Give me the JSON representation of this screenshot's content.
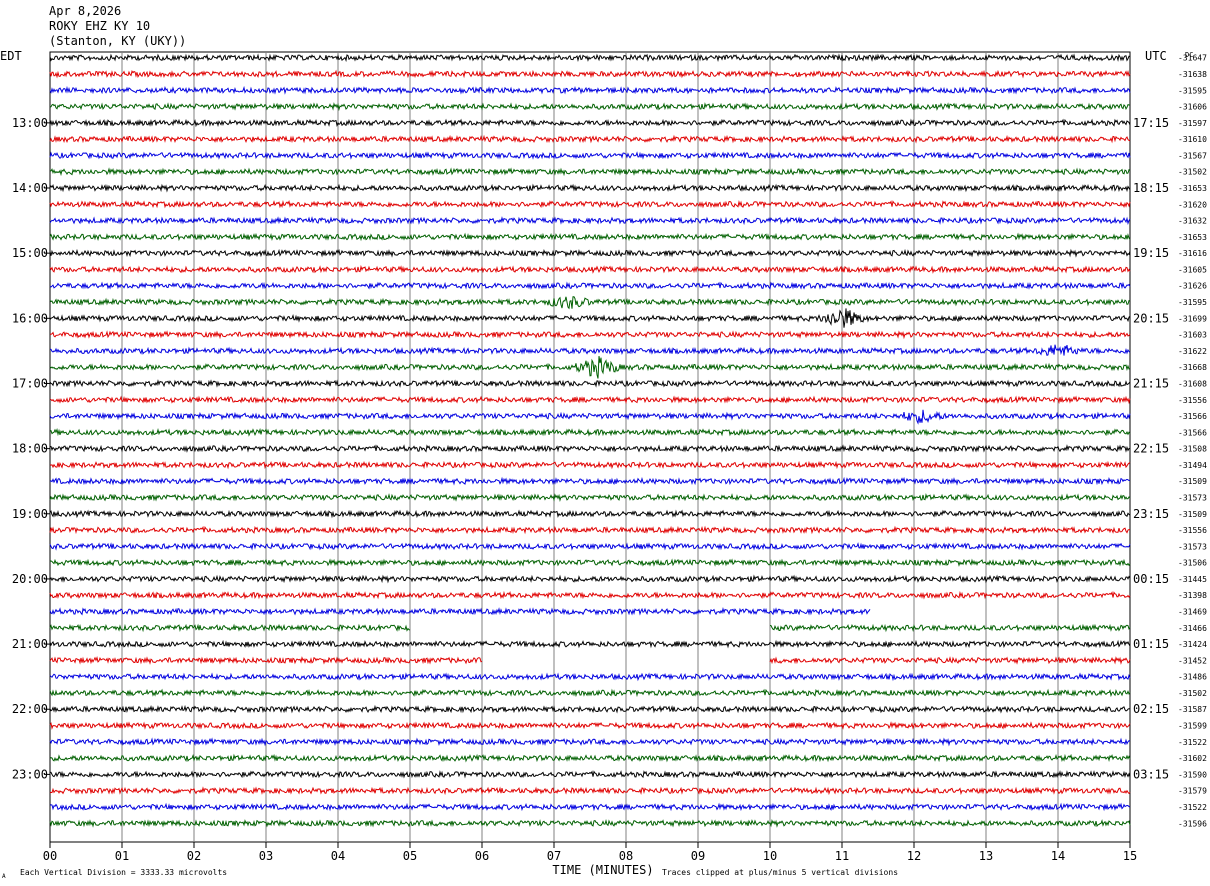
{
  "header": {
    "date": "Apr 8,2026",
    "station": "ROKY EHZ KY 10",
    "location": "(Stanton, KY (UKY))"
  },
  "axis": {
    "left_zone": "EDT",
    "right_zone": "UTC",
    "dc_label": "DC",
    "xlabel": "TIME (MINUTES)",
    "x_ticks": [
      "00",
      "01",
      "02",
      "03",
      "04",
      "05",
      "06",
      "07",
      "08",
      "09",
      "10",
      "11",
      "12",
      "13",
      "14",
      "15"
    ]
  },
  "footer": {
    "left_note": "Each Vertical Division = 3333.33 microvolts",
    "right_note": "Traces clipped at plus/minus 5 vertical divisions",
    "corner_mark": "A"
  },
  "colors": {
    "trace_cycle": [
      "#000000",
      "#e00000",
      "#0000e0",
      "#006000"
    ],
    "grid": "#808080"
  },
  "chart_data": {
    "type": "line",
    "title": "",
    "minutes_per_line": 15,
    "x_range": [
      0,
      15
    ],
    "left_hour_labels": [
      "13:00",
      "14:00",
      "15:00",
      "16:00",
      "17:00",
      "18:00",
      "19:00",
      "20:00",
      "21:00",
      "22:00",
      "23:00"
    ],
    "right_hour_labels": [
      "17:15",
      "18:15",
      "19:15",
      "20:15",
      "21:15",
      "22:15",
      "23:15",
      "00:15",
      "01:15",
      "02:15",
      "03:15"
    ],
    "dc_offsets": [
      "-31647",
      "-31638",
      "-31595",
      "-31606",
      "-31597",
      "-31610",
      "-31567",
      "-31502",
      "-31653",
      "-31620",
      "-31632",
      "-31653",
      "-31616",
      "-31605",
      "-31626",
      "-31595",
      "-31699",
      "-31603",
      "-31622",
      "-31668",
      "-31608",
      "-31556",
      "-31566",
      "-31566",
      "-31508",
      "-31494",
      "-31509",
      "-31573",
      "-31509",
      "-31556",
      "-31573",
      "-31506",
      "-31445",
      "-31398",
      "-31469",
      "-31466",
      "-31424",
      "-31452",
      "-31486",
      "-31502",
      "-31587",
      "-31599",
      "-31522",
      "-31602",
      "-31590",
      "-31579",
      "-31522",
      "-31596"
    ],
    "events": [
      {
        "trace": 19,
        "minute": 7.6,
        "amplitude": "high"
      },
      {
        "trace": 16,
        "minute": 11.0,
        "amplitude": "high"
      },
      {
        "trace": 22,
        "minute": 12.1,
        "amplitude": "medium"
      },
      {
        "trace": 15,
        "minute": 7.2,
        "amplitude": "medium"
      },
      {
        "trace": 18,
        "minute": 14.0,
        "amplitude": "medium"
      }
    ],
    "gaps": [
      {
        "trace": 35,
        "start": 5.0,
        "end": 10.0
      },
      {
        "trace": 36,
        "start": 10.0,
        "end": 10.0
      },
      {
        "trace": 37,
        "start": 6.0,
        "end": 10.0
      },
      {
        "trace": 34,
        "start": 11.4,
        "end": 15.0
      }
    ]
  }
}
